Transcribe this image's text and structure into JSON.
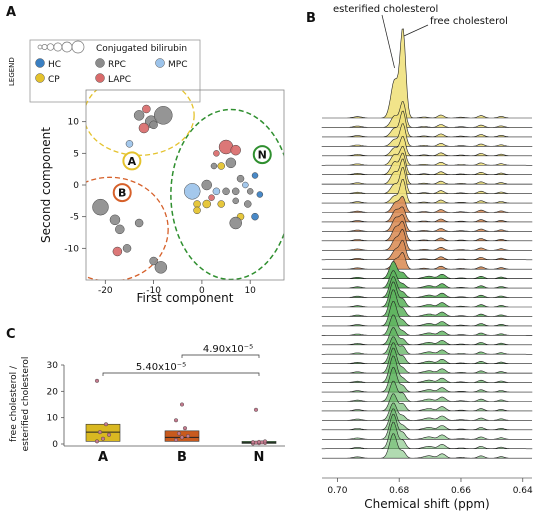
{
  "panels": {
    "a": "A",
    "b": "B",
    "c": "C"
  },
  "legend": {
    "title": "LEGEND",
    "size_label": "Conjugated bilirubin",
    "items": [
      {
        "label": "HC",
        "color": "#3a7fc2"
      },
      {
        "label": "RPC",
        "color": "#8c8c8c"
      },
      {
        "label": "MPC",
        "color": "#9cc3ea"
      },
      {
        "label": "CP",
        "color": "#e4c22c"
      },
      {
        "label": "LAPC",
        "color": "#d96b6b"
      }
    ]
  },
  "chart_data": [
    {
      "type": "scatter",
      "xlabel": "First component",
      "ylabel": "Second component",
      "xlim": [
        -24,
        17
      ],
      "ylim": [
        -15,
        15
      ],
      "xticks": [
        -20,
        -10,
        0,
        10
      ],
      "yticks": [
        -10,
        -5,
        0,
        5,
        10
      ],
      "groups": [
        {
          "label": "A",
          "color": "#e4c22c",
          "center": [
            -14.5,
            3.8
          ]
        },
        {
          "label": "B",
          "color": "#d6602a",
          "center": [
            -16.5,
            -1.2
          ]
        },
        {
          "label": "N",
          "color": "#2f8f2f",
          "center": [
            12.5,
            4.8
          ]
        }
      ],
      "points": [
        {
          "x": -13,
          "y": 11,
          "r": 5,
          "c": "RPC"
        },
        {
          "x": -10.5,
          "y": 10,
          "r": 6,
          "c": "RPC"
        },
        {
          "x": -8,
          "y": 11,
          "r": 9,
          "c": "RPC"
        },
        {
          "x": -12,
          "y": 9,
          "r": 5,
          "c": "LAPC"
        },
        {
          "x": -10,
          "y": 9.5,
          "r": 4,
          "c": "RPC"
        },
        {
          "x": -11.5,
          "y": 12,
          "r": 4,
          "c": "LAPC"
        },
        {
          "x": -15,
          "y": 6.5,
          "r": 3.5,
          "c": "MPC"
        },
        {
          "x": -21,
          "y": -3.5,
          "r": 8,
          "c": "RPC"
        },
        {
          "x": -18,
          "y": -5.5,
          "r": 5,
          "c": "RPC"
        },
        {
          "x": -17,
          "y": -7,
          "r": 4.5,
          "c": "RPC"
        },
        {
          "x": -13,
          "y": -6,
          "r": 4,
          "c": "RPC"
        },
        {
          "x": -17.5,
          "y": -10.5,
          "r": 4.5,
          "c": "LAPC"
        },
        {
          "x": -15.5,
          "y": -10,
          "r": 4,
          "c": "RPC"
        },
        {
          "x": -8.5,
          "y": -13,
          "r": 6,
          "c": "RPC"
        },
        {
          "x": -10,
          "y": -12,
          "r": 4,
          "c": "RPC"
        },
        {
          "x": 5,
          "y": 6,
          "r": 7,
          "c": "LAPC"
        },
        {
          "x": 7,
          "y": 5.5,
          "r": 5,
          "c": "LAPC"
        },
        {
          "x": 6,
          "y": 3.5,
          "r": 5,
          "c": "RPC"
        },
        {
          "x": 4,
          "y": 3,
          "r": 3.5,
          "c": "CP"
        },
        {
          "x": 3,
          "y": 5,
          "r": 3,
          "c": "LAPC"
        },
        {
          "x": 2.5,
          "y": 3,
          "r": 3,
          "c": "RPC"
        },
        {
          "x": -2,
          "y": -1,
          "r": 8,
          "c": "MPC"
        },
        {
          "x": 1,
          "y": 0,
          "r": 5,
          "c": "RPC"
        },
        {
          "x": 1,
          "y": -3,
          "r": 4,
          "c": "CP"
        },
        {
          "x": -1,
          "y": -3,
          "r": 3.5,
          "c": "CP"
        },
        {
          "x": 3,
          "y": -1,
          "r": 3.5,
          "c": "MPC"
        },
        {
          "x": 5,
          "y": -1,
          "r": 3.5,
          "c": "RPC"
        },
        {
          "x": 4,
          "y": -3,
          "r": 3.5,
          "c": "CP"
        },
        {
          "x": 7,
          "y": -1,
          "r": 3.5,
          "c": "RPC"
        },
        {
          "x": 8,
          "y": 1,
          "r": 3.5,
          "c": "RPC"
        },
        {
          "x": 9,
          "y": 0,
          "r": 3,
          "c": "MPC"
        },
        {
          "x": 10,
          "y": -1,
          "r": 3,
          "c": "RPC"
        },
        {
          "x": 11,
          "y": 1.5,
          "r": 3,
          "c": "HC"
        },
        {
          "x": 12,
          "y": -1.5,
          "r": 3,
          "c": "HC"
        },
        {
          "x": 9.5,
          "y": -3,
          "r": 3.5,
          "c": "RPC"
        },
        {
          "x": 8,
          "y": -5,
          "r": 3.5,
          "c": "CP"
        },
        {
          "x": 11,
          "y": -5,
          "r": 3.5,
          "c": "HC"
        },
        {
          "x": 7,
          "y": -6,
          "r": 6,
          "c": "RPC"
        },
        {
          "x": -1,
          "y": -4,
          "r": 3.5,
          "c": "CP"
        },
        {
          "x": 2,
          "y": -2,
          "r": 3,
          "c": "LAPC"
        },
        {
          "x": 7,
          "y": -2.5,
          "r": 3,
          "c": "RPC"
        }
      ]
    },
    {
      "type": "line",
      "xlabel": "Chemical shift (ppm)",
      "xlim": [
        0.705,
        0.637
      ],
      "xticks": [
        0.7,
        0.68,
        0.66,
        0.64
      ],
      "xtick_labels": [
        "0.70",
        "0.68",
        "0.66",
        "0.64"
      ],
      "series_count": 37,
      "group_order": {
        "A": 10,
        "B": 7,
        "N": 20
      },
      "colors": {
        "A": "#efe07a",
        "B": "#d98c55",
        "N": "#5db35d"
      },
      "annotations": [
        {
          "label": "esterified cholesterol",
          "x": 0.6815
        },
        {
          "label": "free cholesterol",
          "x": 0.6788
        }
      ]
    },
    {
      "type": "bar",
      "ylabel": "free cholesterol /\nesterified cholesterol",
      "ylim": [
        0,
        30
      ],
      "yticks": [
        0,
        10,
        20,
        30
      ],
      "categories": [
        "A",
        "B",
        "N"
      ],
      "colors": [
        "#d9b821",
        "#c85a1e",
        "#4a9f4a"
      ],
      "boxes": [
        {
          "q1": 1,
          "median": 4.5,
          "q3": 7.5,
          "points": [
            1,
            2,
            3.5,
            4.5,
            7.5,
            24
          ]
        },
        {
          "q1": 1,
          "median": 2.5,
          "q3": 5,
          "points": [
            1.5,
            2.5,
            3,
            4,
            6,
            9,
            15
          ]
        },
        {
          "q1": 0.2,
          "median": 0.5,
          "q3": 1.0,
          "points": [
            0.2,
            0.3,
            0.4,
            0.5,
            0.6,
            0.7,
            0.8,
            1.0,
            13
          ]
        }
      ],
      "brackets": [
        {
          "label": "4.90x10⁻⁵",
          "from": "B",
          "to": "N"
        },
        {
          "label": "5.40x10⁻⁵",
          "from": "A",
          "to": "N"
        }
      ]
    }
  ]
}
